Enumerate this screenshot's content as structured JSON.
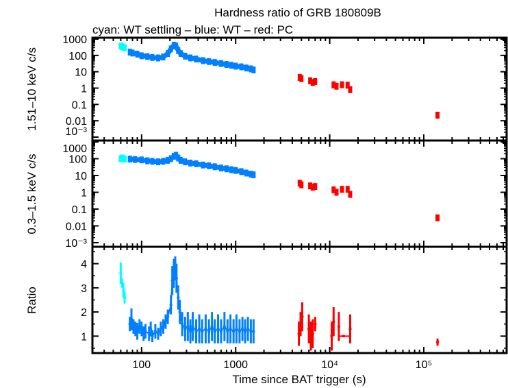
{
  "chart_data": {
    "type": "scatter",
    "title": "Hardness ratio of GRB 180809B",
    "subtitle": "cyan: WT settling – blue: WT – red: PC",
    "xlabel": "Time since BAT trigger (s)",
    "xscale": "log",
    "xlim": [
      30,
      760000
    ],
    "x_ticks": [
      {
        "v": 100,
        "label": "100"
      },
      {
        "v": 1000,
        "label": "1000"
      },
      {
        "v": 10000,
        "label": "10⁴"
      },
      {
        "v": 100000,
        "label": "10⁵"
      }
    ],
    "colors": {
      "wt_settling": "#00ffff",
      "wt": "#0080ff",
      "pc": "#ff0000"
    },
    "grid": false,
    "panels": [
      {
        "ylabel": "1.51–10 keV c/s",
        "yscale": "log",
        "ylim": [
          0.001,
          1000
        ],
        "y_ticks": [
          {
            "v": 1000,
            "label": "1000"
          },
          {
            "v": 100,
            "label": "100"
          },
          {
            "v": 10,
            "label": "10"
          },
          {
            "v": 1,
            "label": "1"
          },
          {
            "v": 0.1,
            "label": "0.1"
          },
          {
            "v": 0.01,
            "label": "0.01"
          },
          {
            "v": 0.001,
            "label": "10⁻³"
          }
        ],
        "series": {
          "wt_settling": [
            [
              60,
              380
            ],
            [
              62,
              340
            ],
            [
              64,
              320
            ],
            [
              66,
              290
            ]
          ],
          "wt": [
            [
              75,
              160
            ],
            [
              80,
              140
            ],
            [
              90,
              120
            ],
            [
              100,
              95
            ],
            [
              115,
              85
            ],
            [
              130,
              75
            ],
            [
              150,
              70
            ],
            [
              170,
              80
            ],
            [
              190,
              130
            ],
            [
              205,
              250
            ],
            [
              220,
              420
            ],
            [
              232,
              380
            ],
            [
              245,
              200
            ],
            [
              260,
              130
            ],
            [
              290,
              90
            ],
            [
              330,
              70
            ],
            [
              380,
              60
            ],
            [
              450,
              48
            ],
            [
              520,
              42
            ],
            [
              600,
              37
            ],
            [
              700,
              32
            ],
            [
              800,
              28
            ],
            [
              900,
              25
            ],
            [
              1000,
              22
            ],
            [
              1150,
              20
            ],
            [
              1300,
              17
            ],
            [
              1450,
              15
            ],
            [
              1550,
              13
            ]
          ],
          "pc": [
            [
              4800,
              4.5
            ],
            [
              5000,
              3.8
            ],
            [
              6200,
              2.8
            ],
            [
              6600,
              2.2
            ],
            [
              7000,
              2.5
            ],
            [
              11000,
              1.6
            ],
            [
              11800,
              1.3
            ],
            [
              13500,
              1.6
            ],
            [
              15500,
              1.5
            ],
            [
              16500,
              0.8
            ],
            [
              140000,
              0.022
            ]
          ]
        }
      },
      {
        "ylabel": "0.3–1.5 keV c/s",
        "yscale": "log",
        "ylim": [
          0.001,
          1000
        ],
        "y_ticks": [
          {
            "v": 1000,
            "label": "1000"
          },
          {
            "v": 100,
            "label": "100"
          },
          {
            "v": 10,
            "label": "10"
          },
          {
            "v": 1,
            "label": "1"
          },
          {
            "v": 0.1,
            "label": "0.1"
          },
          {
            "v": 0.01,
            "label": "0.01"
          },
          {
            "v": 0.001,
            "label": "10⁻³"
          }
        ],
        "series": {
          "wt_settling": [
            [
              60,
              100
            ],
            [
              62,
              110
            ],
            [
              64,
              100
            ],
            [
              66,
              95
            ]
          ],
          "wt": [
            [
              75,
              95
            ],
            [
              85,
              90
            ],
            [
              100,
              85
            ],
            [
              115,
              75
            ],
            [
              130,
              70
            ],
            [
              150,
              65
            ],
            [
              170,
              70
            ],
            [
              190,
              80
            ],
            [
              205,
              100
            ],
            [
              220,
              140
            ],
            [
              232,
              160
            ],
            [
              245,
              110
            ],
            [
              260,
              80
            ],
            [
              290,
              65
            ],
            [
              330,
              55
            ],
            [
              380,
              50
            ],
            [
              450,
              42
            ],
            [
              520,
              38
            ],
            [
              600,
              33
            ],
            [
              700,
              28
            ],
            [
              800,
              25
            ],
            [
              900,
              22
            ],
            [
              1000,
              20
            ],
            [
              1150,
              17
            ],
            [
              1300,
              14
            ],
            [
              1450,
              12
            ],
            [
              1550,
              11
            ]
          ],
          "pc": [
            [
              4800,
              3.5
            ],
            [
              5000,
              2.8
            ],
            [
              6200,
              2.4
            ],
            [
              6600,
              2.0
            ],
            [
              7000,
              2.2
            ],
            [
              11000,
              1.4
            ],
            [
              11800,
              1.0
            ],
            [
              13500,
              1.5
            ],
            [
              15500,
              1.5
            ],
            [
              16500,
              0.75
            ],
            [
              140000,
              0.03
            ]
          ]
        }
      },
      {
        "ylabel": "Ratio",
        "yscale": "linear",
        "ylim": [
          0.3,
          4.7
        ],
        "y_ticks": [
          {
            "v": 1,
            "label": "1"
          },
          {
            "v": 2,
            "label": "2"
          },
          {
            "v": 3,
            "label": "3"
          },
          {
            "v": 4,
            "label": "4"
          }
        ],
        "series": {
          "wt_settling": [
            [
              60,
              3.6,
              0.45
            ],
            [
              62,
              3.2,
              0.2
            ],
            [
              64,
              2.9,
              0.3
            ],
            [
              66,
              2.6,
              0.25
            ]
          ],
          "wt": [
            [
              75,
              1.5,
              0.3
            ],
            [
              78,
              1.7,
              0.45
            ],
            [
              82,
              1.4,
              0.3
            ],
            [
              86,
              1.3,
              0.3
            ],
            [
              90,
              1.2,
              0.35
            ],
            [
              95,
              1.4,
              0.3
            ],
            [
              100,
              1.3,
              0.3
            ],
            [
              105,
              1.1,
              0.3
            ],
            [
              110,
              1.2,
              0.3
            ],
            [
              120,
              1.1,
              0.3
            ],
            [
              125,
              1.3,
              0.3
            ],
            [
              130,
              1.0,
              0.25
            ],
            [
              140,
              1.2,
              0.3
            ],
            [
              150,
              1.1,
              0.25
            ],
            [
              160,
              1.3,
              0.3
            ],
            [
              170,
              1.4,
              0.3
            ],
            [
              180,
              1.6,
              0.3
            ],
            [
              190,
              1.8,
              0.3
            ],
            [
              205,
              2.3,
              0.4
            ],
            [
              212,
              3.3,
              0.6
            ],
            [
              220,
              3.6,
              0.6
            ],
            [
              228,
              3.8,
              0.5
            ],
            [
              235,
              3.4,
              0.6
            ],
            [
              245,
              2.6,
              0.5
            ],
            [
              255,
              2.0,
              0.5
            ],
            [
              270,
              1.5,
              0.5
            ],
            [
              290,
              1.3,
              0.5
            ],
            [
              310,
              1.4,
              0.6
            ],
            [
              330,
              1.2,
              0.5
            ],
            [
              350,
              1.4,
              0.6
            ],
            [
              380,
              1.2,
              0.5
            ],
            [
              410,
              1.3,
              0.6
            ],
            [
              440,
              1.2,
              0.5
            ],
            [
              480,
              1.3,
              0.6
            ],
            [
              520,
              1.2,
              0.5
            ],
            [
              560,
              1.4,
              0.6
            ],
            [
              600,
              1.2,
              0.5
            ],
            [
              650,
              1.3,
              0.6
            ],
            [
              700,
              1.2,
              0.5
            ],
            [
              760,
              1.4,
              0.6
            ],
            [
              820,
              1.2,
              0.5
            ],
            [
              880,
              1.3,
              0.6
            ],
            [
              950,
              1.2,
              0.5
            ],
            [
              1020,
              1.3,
              0.6
            ],
            [
              1100,
              1.2,
              0.5
            ],
            [
              1180,
              1.3,
              0.5
            ],
            [
              1260,
              1.2,
              0.5
            ],
            [
              1350,
              1.3,
              0.5
            ],
            [
              1450,
              1.2,
              0.5
            ],
            [
              1550,
              1.2,
              0.5
            ]
          ],
          "pc": [
            [
              4700,
              1.1,
              0.5
            ],
            [
              4900,
              1.5,
              0.5
            ],
            [
              5100,
              1.8,
              0.6
            ],
            [
              6000,
              1.3,
              0.6
            ],
            [
              6300,
              1.0,
              0.6
            ],
            [
              6600,
              1.1,
              0.6
            ],
            [
              7000,
              1.5,
              0.3
            ],
            [
              10500,
              1.0,
              0.6
            ],
            [
              11000,
              1.6,
              0.6
            ],
            [
              12500,
              1.4,
              0.6
            ],
            [
              14000,
              1.0,
              0.05
            ],
            [
              16500,
              1.3,
              0.6
            ],
            [
              140000,
              0.75,
              0.15
            ]
          ]
        }
      }
    ]
  }
}
